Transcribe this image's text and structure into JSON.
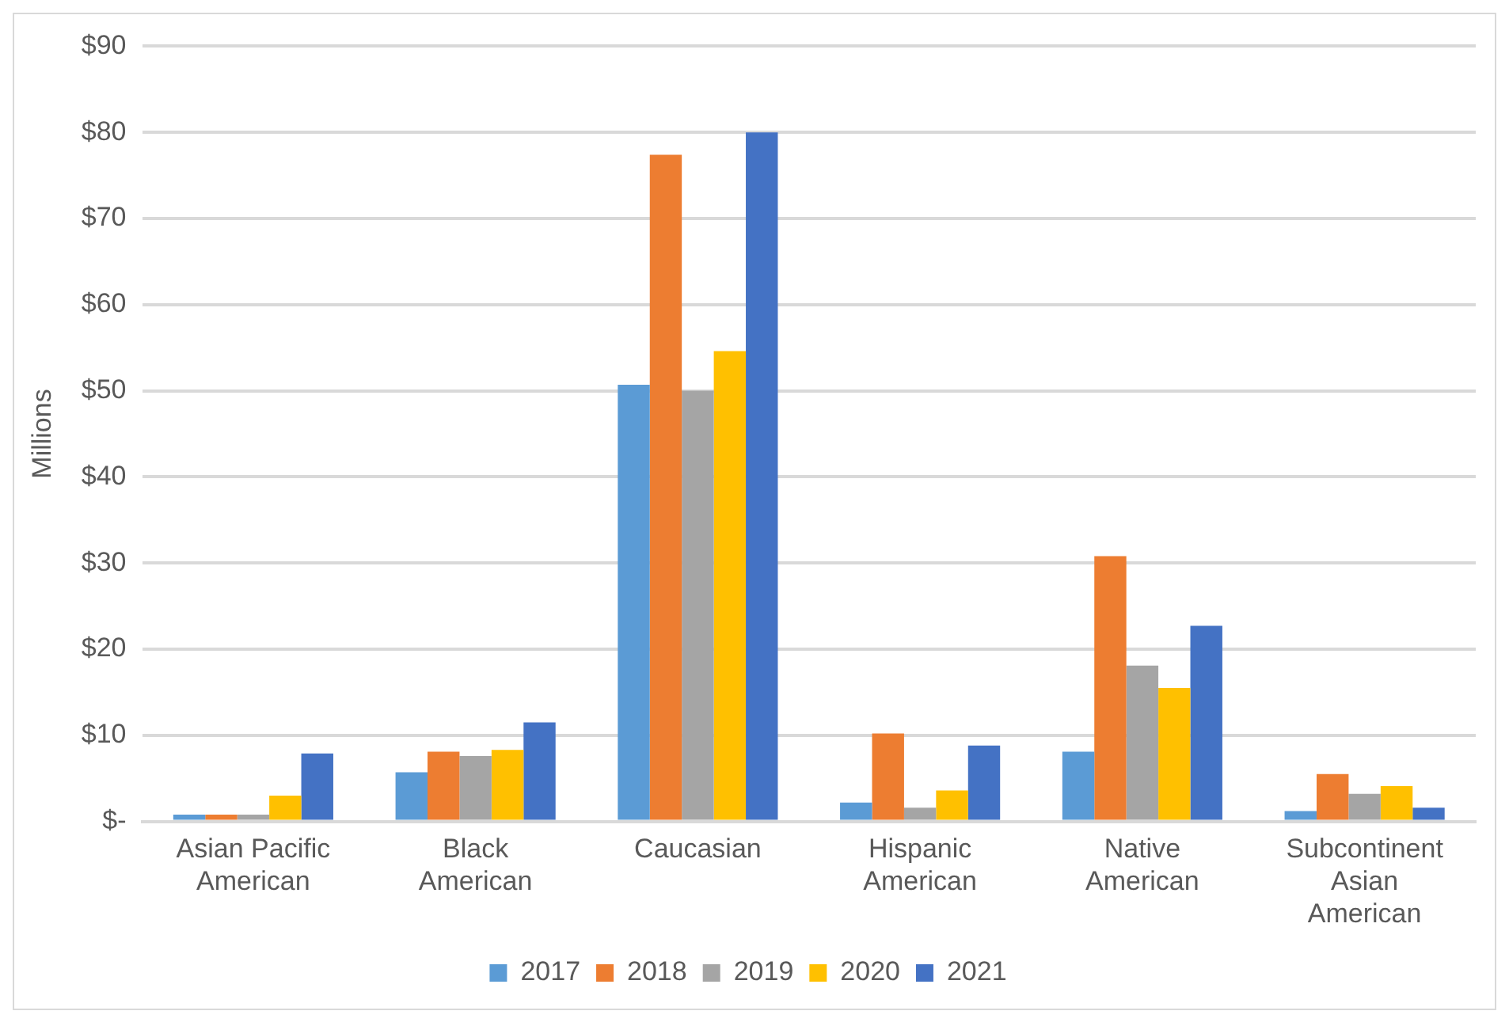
{
  "chart_data": {
    "type": "bar",
    "ylabel": "Millions",
    "categories": [
      "Asian Pacific American",
      "Black American",
      "Caucasian",
      "Hispanic American",
      "Native American",
      "Subcontinent Asian American"
    ],
    "series": [
      {
        "name": "2017",
        "color": "#5b9bd5",
        "values": [
          0.8,
          5.7,
          50.7,
          2.2,
          8.1,
          1.2
        ]
      },
      {
        "name": "2018",
        "color": "#ed7d31",
        "values": [
          0.8,
          8.1,
          77.4,
          10.2,
          30.8,
          5.5
        ]
      },
      {
        "name": "2019",
        "color": "#a5a5a5",
        "values": [
          0.8,
          7.6,
          50,
          1.6,
          18.1,
          3.2
        ]
      },
      {
        "name": "2020",
        "color": "#ffc000",
        "values": [
          3,
          8.3,
          54.6,
          3.6,
          15.5,
          4.1
        ]
      },
      {
        "name": "2021",
        "color": "#4472c4",
        "values": [
          7.9,
          11.5,
          80,
          8.8,
          22.7,
          1.6
        ]
      }
    ],
    "ylim": [
      0,
      90
    ],
    "yticks": [
      {
        "value": 0,
        "label": "$-"
      },
      {
        "value": 10,
        "label": "$10"
      },
      {
        "value": 20,
        "label": "$20"
      },
      {
        "value": 30,
        "label": "$30"
      },
      {
        "value": 40,
        "label": "$40"
      },
      {
        "value": 50,
        "label": "$50"
      },
      {
        "value": 60,
        "label": "$60"
      },
      {
        "value": 70,
        "label": "$70"
      },
      {
        "value": 80,
        "label": "$80"
      },
      {
        "value": 90,
        "label": "$90"
      }
    ],
    "grid": "y",
    "legend": "bottom"
  }
}
